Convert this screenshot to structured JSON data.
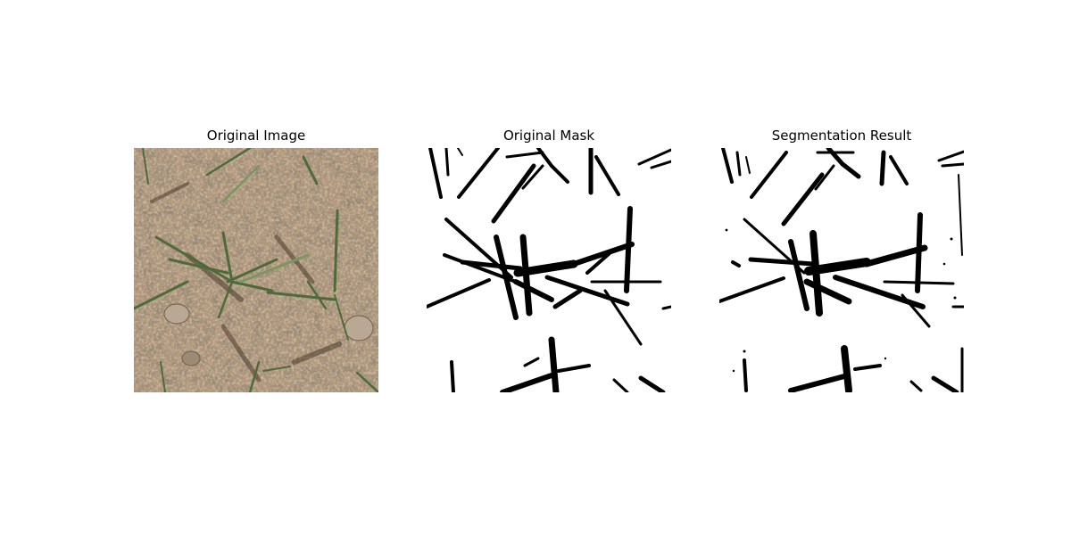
{
  "panels": [
    {
      "title": "Original Image"
    },
    {
      "title": "Original Mask"
    },
    {
      "title": "Segmentation Result"
    }
  ],
  "colors": {
    "soil": "#b0977a",
    "soil_dark": "#5e4d3b",
    "leaf": "#4d6b3a",
    "leaf_light": "#7c9561",
    "mask_bg": "#ffffff",
    "mask_fg": "#000000"
  }
}
